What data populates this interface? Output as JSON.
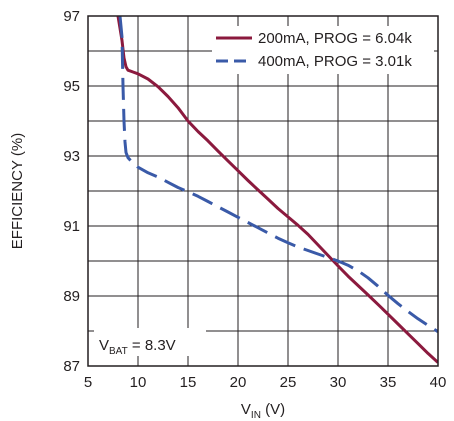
{
  "chart_data": {
    "type": "line",
    "title": "",
    "xlabel": {
      "main": "V",
      "sub": "IN",
      "suffix": " (V)"
    },
    "ylabel": "EFFICIENCY (%)",
    "xlim": [
      5,
      40
    ],
    "ylim": [
      87,
      97
    ],
    "x_ticks": [
      5,
      10,
      15,
      20,
      25,
      30,
      35,
      40
    ],
    "x_tick_labels": [
      "5",
      "10",
      "15",
      "20",
      "25",
      "30",
      "35",
      "40"
    ],
    "y_ticks": [
      87,
      89,
      91,
      93,
      95,
      97
    ],
    "y_tick_labels": [
      "87",
      "89",
      "91",
      "93",
      "95",
      "97"
    ],
    "grid": true,
    "legend_position": "top-right",
    "annotation": {
      "main": "V",
      "sub": "BAT",
      "suffix": " = 8.3V"
    },
    "series": [
      {
        "name": "200mA, PROG = 6.04k",
        "color": "#8b1a3e",
        "dash": "solid",
        "x": [
          8.0,
          8.4,
          8.6,
          8.8,
          9.0,
          9.5,
          10,
          11,
          12,
          13,
          14,
          15,
          16,
          17,
          18,
          19,
          20,
          21,
          22,
          23,
          24,
          25,
          26,
          27,
          28,
          29,
          30,
          31,
          32,
          33,
          34,
          35,
          36,
          37,
          38,
          39,
          40
        ],
        "y": [
          97.0,
          96.3,
          95.8,
          95.55,
          95.45,
          95.4,
          95.35,
          95.2,
          94.98,
          94.7,
          94.38,
          94.0,
          93.7,
          93.43,
          93.14,
          92.86,
          92.58,
          92.3,
          92.03,
          91.77,
          91.5,
          91.26,
          91.02,
          90.76,
          90.46,
          90.16,
          89.86,
          89.57,
          89.3,
          89.03,
          88.76,
          88.48,
          88.2,
          87.92,
          87.64,
          87.36,
          87.1
        ]
      },
      {
        "name": "400mA, PROG = 3.01k",
        "color": "#3a5aa8",
        "dash": "dashed",
        "x": [
          8.2,
          8.4,
          8.5,
          8.6,
          8.7,
          8.8,
          9.0,
          9.5,
          10,
          11,
          12,
          13,
          14,
          15,
          16,
          17,
          18,
          19,
          20,
          21,
          22,
          23,
          24,
          25,
          26,
          27,
          28,
          29,
          30,
          31,
          32,
          33,
          34,
          35,
          36,
          37,
          38,
          39,
          40
        ],
        "y": [
          97.0,
          96.4,
          95.0,
          94.0,
          93.4,
          93.1,
          92.95,
          92.8,
          92.68,
          92.52,
          92.4,
          92.25,
          92.1,
          91.98,
          91.85,
          91.7,
          91.55,
          91.4,
          91.25,
          91.1,
          90.95,
          90.8,
          90.65,
          90.52,
          90.4,
          90.3,
          90.2,
          90.1,
          90.0,
          89.88,
          89.72,
          89.52,
          89.28,
          89.02,
          88.78,
          88.56,
          88.35,
          88.16,
          87.98
        ]
      }
    ]
  }
}
